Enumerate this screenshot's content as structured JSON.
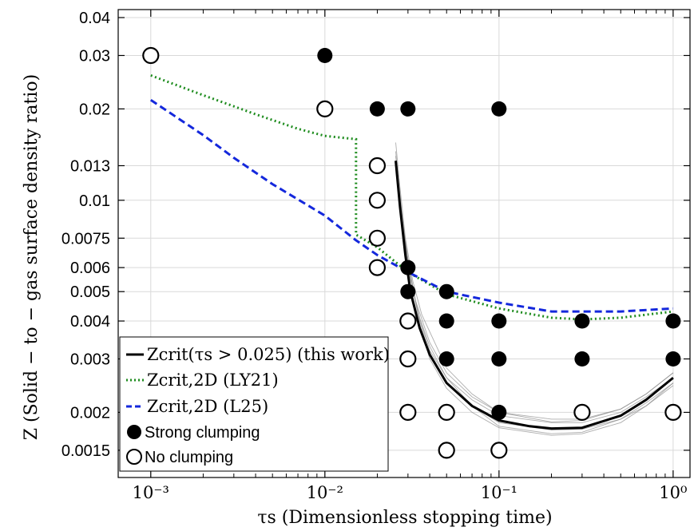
{
  "chart_data": {
    "type": "scatter",
    "title": "",
    "xlabel": "τs (Dimensionless stopping time)",
    "ylabel": "Z (Solid − to − gas surface density ratio)",
    "xscale": "log",
    "yscale": "log",
    "xlim": [
      0.00065,
      1.25
    ],
    "ylim": [
      0.00122,
      0.0425
    ],
    "grid": true,
    "legend_position": "bottom-left",
    "x_ticks": [
      {
        "value": 0.001,
        "label": "10⁻³"
      },
      {
        "value": 0.01,
        "label": "10⁻²"
      },
      {
        "value": 0.1,
        "label": "10⁻¹"
      },
      {
        "value": 1,
        "label": "10⁰"
      }
    ],
    "y_ticks": [
      {
        "value": 0.0015,
        "label": "0.0015"
      },
      {
        "value": 0.002,
        "label": "0.002"
      },
      {
        "value": 0.003,
        "label": "0.003"
      },
      {
        "value": 0.004,
        "label": "0.004"
      },
      {
        "value": 0.005,
        "label": "0.005"
      },
      {
        "value": 0.006,
        "label": "0.006"
      },
      {
        "value": 0.0075,
        "label": "0.0075"
      },
      {
        "value": 0.01,
        "label": "0.01"
      },
      {
        "value": 0.013,
        "label": "0.013"
      },
      {
        "value": 0.02,
        "label": "0.02"
      },
      {
        "value": 0.03,
        "label": "0.03"
      },
      {
        "value": 0.04,
        "label": "0.04"
      }
    ],
    "legend": [
      {
        "key": "zcrit",
        "label": "Zcrit(τs > 0.025) (this work)",
        "color": "#000000",
        "style": "solid"
      },
      {
        "key": "ly21",
        "label": "Zcrit,2D (LY21)",
        "color": "#1e8c1e",
        "style": "dotted"
      },
      {
        "key": "l25",
        "label": "Zcrit,2D (L25)",
        "color": "#1428dc",
        "style": "dashed"
      },
      {
        "key": "strong",
        "label": "Strong clumping",
        "color": "#000000",
        "style": "filled-circle"
      },
      {
        "key": "none",
        "label": "No clumping",
        "color": "#000000",
        "style": "open-circle"
      }
    ],
    "series": [
      {
        "key": "strong",
        "name": "Strong clumping",
        "marker": "filled",
        "points": [
          [
            0.01,
            0.03
          ],
          [
            0.02,
            0.02
          ],
          [
            0.03,
            0.02
          ],
          [
            0.1,
            0.02
          ],
          [
            0.03,
            0.006
          ],
          [
            0.03,
            0.005
          ],
          [
            0.05,
            0.005
          ],
          [
            0.05,
            0.004
          ],
          [
            0.1,
            0.004
          ],
          [
            0.3,
            0.004
          ],
          [
            1.0,
            0.004
          ],
          [
            0.05,
            0.003
          ],
          [
            0.1,
            0.003
          ],
          [
            0.3,
            0.003
          ],
          [
            1.0,
            0.003
          ],
          [
            0.1,
            0.002
          ]
        ]
      },
      {
        "key": "none",
        "name": "No clumping",
        "marker": "open",
        "points": [
          [
            0.001,
            0.03
          ],
          [
            0.01,
            0.02
          ],
          [
            0.02,
            0.013
          ],
          [
            0.02,
            0.01
          ],
          [
            0.02,
            0.0075
          ],
          [
            0.02,
            0.006
          ],
          [
            0.03,
            0.004
          ],
          [
            0.03,
            0.003
          ],
          [
            0.03,
            0.002
          ],
          [
            0.05,
            0.002
          ],
          [
            0.3,
            0.002
          ],
          [
            1.0,
            0.002
          ],
          [
            0.05,
            0.0015
          ],
          [
            0.1,
            0.0015
          ]
        ]
      },
      {
        "key": "ly21",
        "name": "Zcrit,2D (LY21)",
        "line": "dotted",
        "points": [
          [
            0.001,
            0.0258
          ],
          [
            0.002,
            0.0222
          ],
          [
            0.004,
            0.0192
          ],
          [
            0.007,
            0.0172
          ],
          [
            0.01,
            0.0163
          ],
          [
            0.0151,
            0.0159
          ],
          [
            0.0151,
            0.0077
          ],
          [
            0.02,
            0.007
          ],
          [
            0.03,
            0.0058
          ],
          [
            0.05,
            0.0049
          ],
          [
            0.1,
            0.0044
          ],
          [
            0.2,
            0.0041
          ],
          [
            0.3,
            0.00405
          ],
          [
            0.5,
            0.0041
          ],
          [
            1.0,
            0.0043
          ]
        ]
      },
      {
        "key": "l25",
        "name": "Zcrit,2D (L25)",
        "line": "dashed",
        "points": [
          [
            0.001,
            0.0214
          ],
          [
            0.002,
            0.0164
          ],
          [
            0.003,
            0.0138
          ],
          [
            0.005,
            0.0113
          ],
          [
            0.01,
            0.0089
          ],
          [
            0.015,
            0.0074
          ],
          [
            0.02,
            0.0066
          ],
          [
            0.03,
            0.0058
          ],
          [
            0.05,
            0.005
          ],
          [
            0.1,
            0.0046
          ],
          [
            0.2,
            0.0043
          ],
          [
            0.3,
            0.0043
          ],
          [
            0.5,
            0.0043
          ],
          [
            1.0,
            0.0044
          ]
        ]
      },
      {
        "key": "zcrit",
        "name": "Zcrit(τs > 0.025) (this work)",
        "line": "solid",
        "points": [
          [
            0.0255,
            0.0135
          ],
          [
            0.027,
            0.0095
          ],
          [
            0.029,
            0.0066
          ],
          [
            0.031,
            0.005
          ],
          [
            0.035,
            0.0038
          ],
          [
            0.04,
            0.0031
          ],
          [
            0.05,
            0.0025
          ],
          [
            0.07,
            0.0021
          ],
          [
            0.1,
            0.00188
          ],
          [
            0.15,
            0.0018
          ],
          [
            0.2,
            0.00177
          ],
          [
            0.3,
            0.00178
          ],
          [
            0.5,
            0.00195
          ],
          [
            0.7,
            0.0022
          ],
          [
            1.0,
            0.0026
          ]
        ]
      }
    ],
    "samples": [
      [
        [
          0.0255,
          0.0155
        ],
        [
          0.027,
          0.011
        ],
        [
          0.029,
          0.0075
        ],
        [
          0.032,
          0.0054
        ],
        [
          0.036,
          0.0042
        ],
        [
          0.05,
          0.0028
        ],
        [
          0.07,
          0.0023
        ],
        [
          0.1,
          0.002
        ],
        [
          0.2,
          0.00186
        ],
        [
          0.3,
          0.00188
        ],
        [
          0.5,
          0.00205
        ],
        [
          0.7,
          0.0023
        ],
        [
          1.0,
          0.0027
        ]
      ],
      [
        [
          0.026,
          0.0125
        ],
        [
          0.028,
          0.0082
        ],
        [
          0.031,
          0.0055
        ],
        [
          0.035,
          0.0041
        ],
        [
          0.04,
          0.0033
        ],
        [
          0.05,
          0.0026
        ],
        [
          0.07,
          0.0021
        ],
        [
          0.1,
          0.0018
        ],
        [
          0.2,
          0.0017
        ],
        [
          0.3,
          0.00172
        ],
        [
          0.5,
          0.0019
        ],
        [
          0.7,
          0.0021
        ],
        [
          1.0,
          0.0025
        ]
      ],
      [
        [
          0.0255,
          0.0145
        ],
        [
          0.027,
          0.01
        ],
        [
          0.03,
          0.0062
        ],
        [
          0.034,
          0.0043
        ],
        [
          0.04,
          0.0032
        ],
        [
          0.05,
          0.0026
        ],
        [
          0.07,
          0.0022
        ],
        [
          0.1,
          0.00195
        ],
        [
          0.2,
          0.00185
        ],
        [
          0.3,
          0.00185
        ],
        [
          0.5,
          0.002
        ],
        [
          0.7,
          0.00225
        ],
        [
          1.0,
          0.0026
        ]
      ],
      [
        [
          0.026,
          0.012
        ],
        [
          0.028,
          0.0078
        ],
        [
          0.031,
          0.0052
        ],
        [
          0.035,
          0.0039
        ],
        [
          0.04,
          0.003
        ],
        [
          0.05,
          0.0024
        ],
        [
          0.07,
          0.002
        ],
        [
          0.1,
          0.00178
        ],
        [
          0.2,
          0.00168
        ],
        [
          0.3,
          0.0017
        ],
        [
          0.5,
          0.00185
        ],
        [
          0.7,
          0.0021
        ],
        [
          1.0,
          0.00245
        ]
      ],
      [
        [
          0.0255,
          0.014
        ],
        [
          0.027,
          0.0098
        ],
        [
          0.03,
          0.0064
        ],
        [
          0.033,
          0.0047
        ],
        [
          0.04,
          0.0034
        ],
        [
          0.05,
          0.0027
        ],
        [
          0.07,
          0.00225
        ],
        [
          0.1,
          0.002
        ],
        [
          0.2,
          0.0019
        ],
        [
          0.3,
          0.0019
        ],
        [
          0.5,
          0.00205
        ],
        [
          0.7,
          0.0023
        ],
        [
          1.0,
          0.0027
        ]
      ],
      [
        [
          0.026,
          0.013
        ],
        [
          0.028,
          0.0085
        ],
        [
          0.031,
          0.0056
        ],
        [
          0.035,
          0.004
        ],
        [
          0.04,
          0.0031
        ],
        [
          0.05,
          0.0025
        ],
        [
          0.07,
          0.0021
        ],
        [
          0.1,
          0.00185
        ],
        [
          0.2,
          0.00175
        ],
        [
          0.3,
          0.00176
        ],
        [
          0.5,
          0.0019
        ],
        [
          0.7,
          0.00215
        ],
        [
          1.0,
          0.0025
        ]
      ]
    ]
  }
}
